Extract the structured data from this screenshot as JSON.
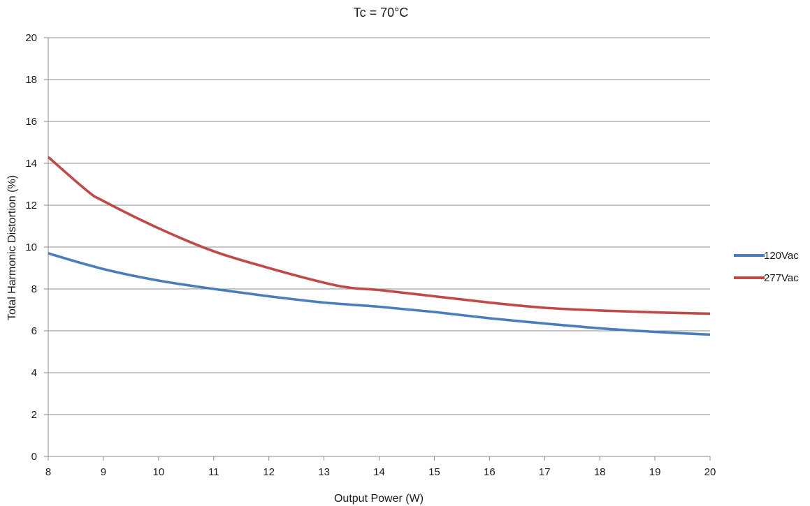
{
  "chart_data": {
    "type": "line",
    "title": "Tc = 70°C",
    "xlabel": "Output Power (W)",
    "ylabel": "Total Harmonic Distortion (%)",
    "xlim": [
      8,
      20
    ],
    "ylim": [
      0,
      20
    ],
    "x_ticks": [
      "8",
      "9",
      "10",
      "11",
      "12",
      "13",
      "14",
      "15",
      "16",
      "17",
      "18",
      "19",
      "20"
    ],
    "y_ticks": [
      "0",
      "2",
      "4",
      "6",
      "8",
      "10",
      "12",
      "14",
      "16",
      "18",
      "20"
    ],
    "grid": "horizontal",
    "legend_position": "right",
    "series": [
      {
        "name": "120Vac",
        "color": "#4a7ebb",
        "x": [
          8,
          9,
          10,
          11,
          12,
          13,
          14,
          15,
          16,
          17,
          18,
          19,
          20
        ],
        "y": [
          9.7,
          8.95,
          8.4,
          8.0,
          7.65,
          7.35,
          7.15,
          6.9,
          6.6,
          6.35,
          6.12,
          5.95,
          5.82
        ]
      },
      {
        "name": "277Vac",
        "color": "#be4b48",
        "x": [
          8,
          8.7,
          9,
          10,
          11,
          12,
          13,
          13.5,
          14,
          15,
          16,
          17,
          18,
          19,
          20
        ],
        "y": [
          14.3,
          12.7,
          12.2,
          10.9,
          9.8,
          9.0,
          8.3,
          8.05,
          7.95,
          7.65,
          7.35,
          7.1,
          6.97,
          6.88,
          6.82
        ]
      }
    ]
  }
}
